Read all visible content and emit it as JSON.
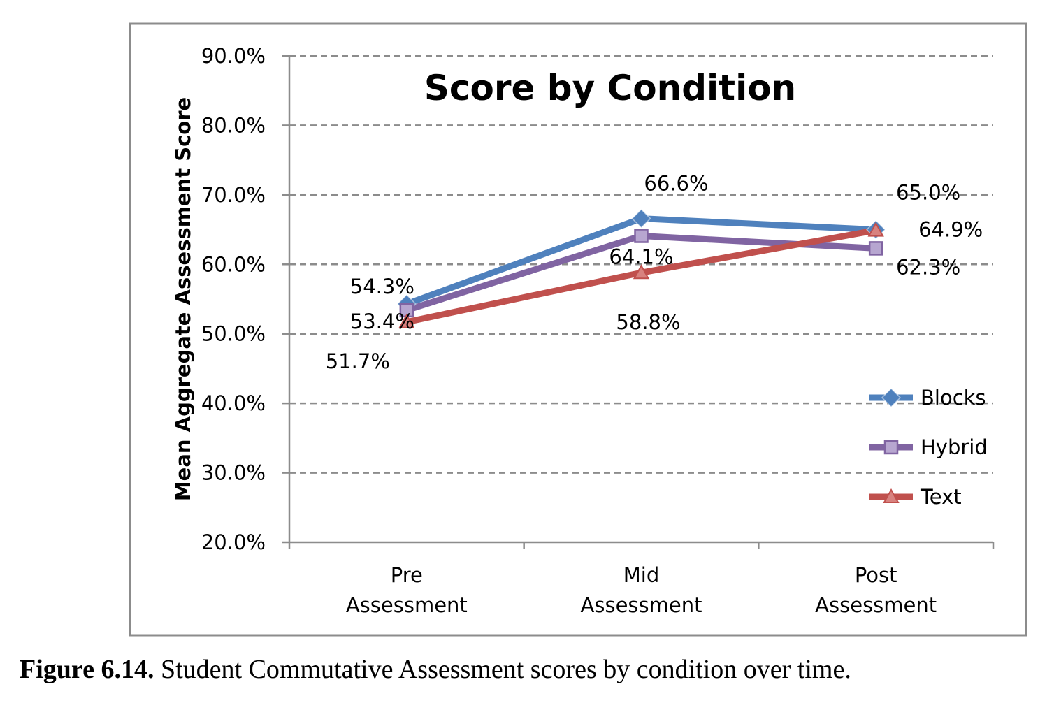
{
  "chart_data": {
    "type": "line",
    "title": "Score by Condition",
    "xlabel": "",
    "ylabel": "Mean Aggregate Assessment Score",
    "categories": [
      [
        "Pre",
        "Assessment"
      ],
      [
        "Mid",
        "Assessment"
      ],
      [
        "Post",
        "Assessment"
      ]
    ],
    "ylim": [
      0.2,
      0.9
    ],
    "yticks": [
      0.2,
      0.3,
      0.4,
      0.5,
      0.6,
      0.7,
      0.8,
      0.9
    ],
    "ytick_labels": [
      "20.0%",
      "30.0%",
      "40.0%",
      "50.0%",
      "60.0%",
      "70.0%",
      "80.0%",
      "90.0%"
    ],
    "grid": true,
    "legend_position": "bottom-right",
    "series": [
      {
        "name": "Blocks",
        "values": [
          0.543,
          0.666,
          0.65
        ],
        "labels": [
          "54.3%",
          "66.6%",
          "65.0%"
        ],
        "color": "#4F81BD",
        "marker": "diamond"
      },
      {
        "name": "Hybrid",
        "values": [
          0.534,
          0.641,
          0.623
        ],
        "labels": [
          "53.4%",
          "64.1%",
          "62.3%"
        ],
        "color": "#8064A2",
        "marker": "square"
      },
      {
        "name": "Text",
        "values": [
          0.517,
          0.588,
          0.649
        ],
        "labels": [
          "51.7%",
          "58.8%",
          "64.9%"
        ],
        "color": "#C0504D",
        "marker": "triangle"
      }
    ]
  },
  "caption": {
    "label": "Figure 6.14.",
    "text": " Student Commutative Assessment scores by condition over time."
  }
}
